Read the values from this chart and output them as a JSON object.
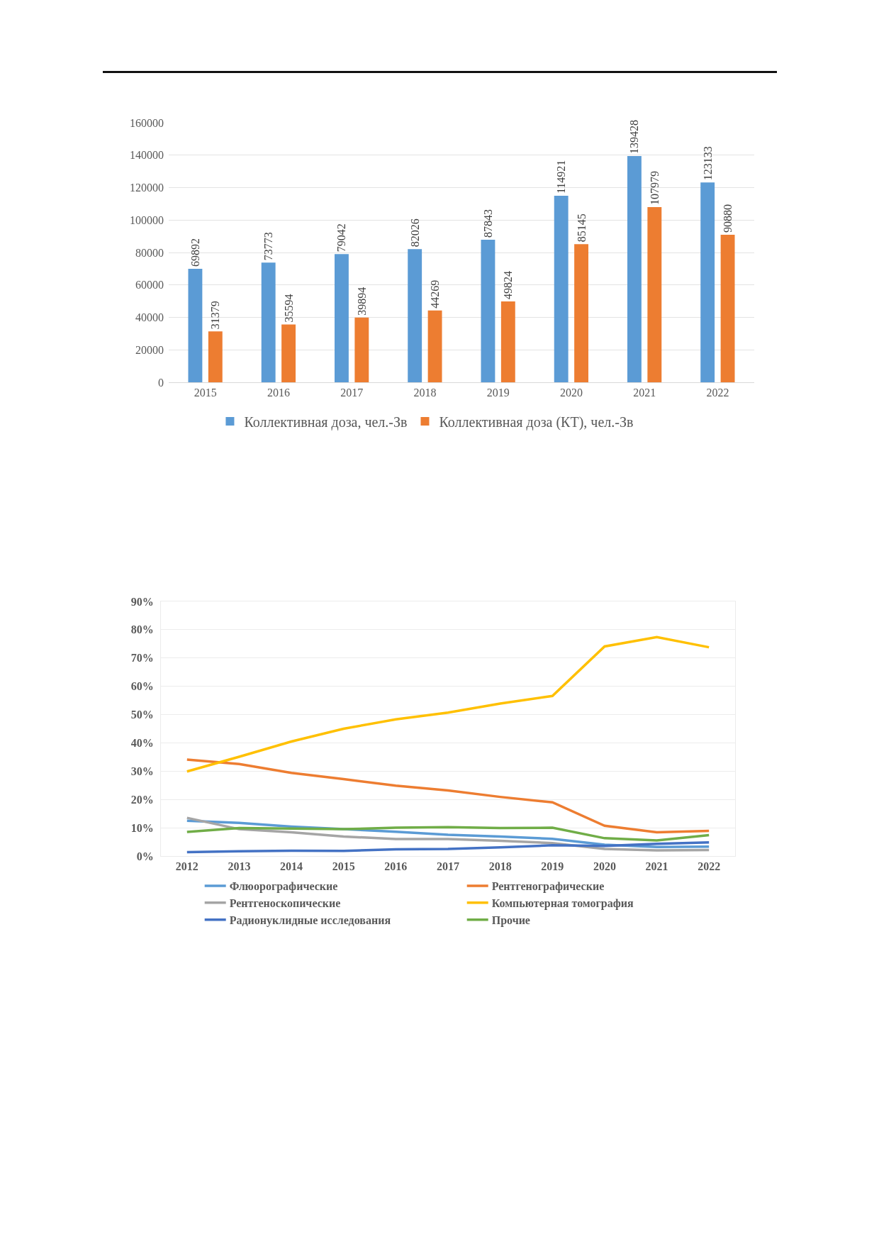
{
  "chart_data": [
    {
      "type": "bar",
      "categories": [
        "2015",
        "2016",
        "2017",
        "2018",
        "2019",
        "2020",
        "2021",
        "2022"
      ],
      "series": [
        {
          "name": "Коллективная доза, чел.-Зв",
          "color": "#5b9bd5",
          "values": [
            69892,
            73773,
            79042,
            82026,
            87843,
            114921,
            139428,
            123133
          ]
        },
        {
          "name": "Коллективная доза (КТ), чел.-Зв",
          "color": "#ed7d31",
          "values": [
            31379,
            35594,
            39894,
            44269,
            49824,
            85145,
            107979,
            90880
          ]
        }
      ],
      "ylim": [
        0,
        160000
      ],
      "yticks": [
        0,
        20000,
        40000,
        60000,
        80000,
        100000,
        120000,
        140000,
        160000
      ],
      "grid": "y",
      "legend": "bottom",
      "data_labels": true
    },
    {
      "type": "line",
      "categories": [
        "2012",
        "2013",
        "2014",
        "2015",
        "2016",
        "2017",
        "2018",
        "2019",
        "2020",
        "2021",
        "2022"
      ],
      "series": [
        {
          "name": "Флюорографические",
          "color": "#5b9bd5",
          "values": [
            12.5,
            11.7,
            10.4,
            9.5,
            8.6,
            7.5,
            6.9,
            6.1,
            4.0,
            3.2,
            3.3
          ]
        },
        {
          "name": "Рентгенографические",
          "color": "#ed7d31",
          "values": [
            34.1,
            32.5,
            29.4,
            27.2,
            24.9,
            23.2,
            20.9,
            19.0,
            10.7,
            8.4,
            8.9
          ]
        },
        {
          "name": "Рентгеноскопические",
          "color": "#a5a5a5",
          "values": [
            13.5,
            9.5,
            8.4,
            6.9,
            6.0,
            6.0,
            5.4,
            4.6,
            2.5,
            2.0,
            2.1
          ]
        },
        {
          "name": "Компьютерная томография",
          "color": "#ffc000",
          "values": [
            29.9,
            35.1,
            40.5,
            45.0,
            48.3,
            50.7,
            53.9,
            56.6,
            74.1,
            77.4,
            73.8
          ]
        },
        {
          "name": "Радионуклидные исследования",
          "color": "#4472c4",
          "values": [
            1.4,
            1.7,
            1.9,
            1.8,
            2.4,
            2.5,
            3.1,
            3.8,
            3.6,
            4.3,
            4.8
          ]
        },
        {
          "name": "Прочие",
          "color": "#70ad47",
          "values": [
            8.5,
            9.9,
            9.7,
            9.5,
            10.0,
            10.2,
            9.9,
            10.0,
            6.3,
            5.5,
            7.4
          ]
        }
      ],
      "ylim": [
        0,
        90
      ],
      "yticks": [
        {
          "value": 0,
          "label": "0%"
        },
        {
          "value": 10,
          "label": "10%"
        },
        {
          "value": 20,
          "label": "20%"
        },
        {
          "value": 30,
          "label": "30%"
        },
        {
          "value": 40,
          "label": "40%"
        },
        {
          "value": 50,
          "label": "50%"
        },
        {
          "value": 60,
          "label": "60%"
        },
        {
          "value": 70,
          "label": "70%"
        },
        {
          "value": 80,
          "label": "80%"
        },
        {
          "value": 90,
          "label": "90%"
        }
      ],
      "grid": "y",
      "legend": "bottom",
      "line_style": "solid"
    }
  ]
}
